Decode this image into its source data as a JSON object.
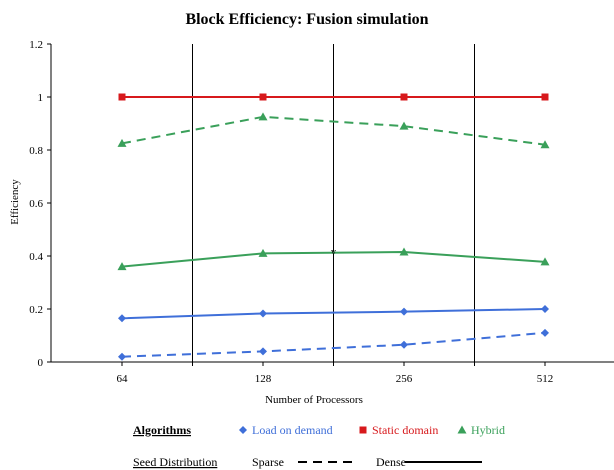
{
  "chart_data": {
    "type": "line",
    "title": "Block Efficiency: Fusion simulation",
    "xlabel": "Number of Processors",
    "ylabel": "Efficiency",
    "categories": [
      "64",
      "128",
      "256",
      "512"
    ],
    "ylim": [
      0,
      1.2
    ],
    "yticks": [
      "0",
      "0.2",
      "0.4",
      "0.6",
      "0.8",
      "1",
      "1.2"
    ],
    "grid": "vertical",
    "series": [
      {
        "algorithm": "Load on demand",
        "distribution": "Sparse",
        "color": "#3f6fd9",
        "marker": "diamond",
        "dash": true,
        "values": [
          0.02,
          0.04,
          0.065,
          0.11
        ]
      },
      {
        "algorithm": "Load on demand",
        "distribution": "Dense",
        "color": "#3f6fd9",
        "marker": "diamond",
        "dash": false,
        "values": [
          0.165,
          0.183,
          0.19,
          0.2
        ]
      },
      {
        "algorithm": "Static domain",
        "distribution": "Sparse",
        "color": "#d7191c",
        "marker": "square",
        "dash": true,
        "values": [
          1.0,
          1.0,
          1.0,
          1.0
        ]
      },
      {
        "algorithm": "Static domain",
        "distribution": "Dense",
        "color": "#d7191c",
        "marker": "square",
        "dash": false,
        "values": [
          1.0,
          1.0,
          1.0,
          1.0
        ]
      },
      {
        "algorithm": "Hybrid",
        "distribution": "Sparse",
        "color": "#3aa05a",
        "marker": "triangle",
        "dash": true,
        "values": [
          0.825,
          0.925,
          0.89,
          0.82
        ]
      },
      {
        "algorithm": "Hybrid",
        "distribution": "Dense",
        "color": "#3aa05a",
        "marker": "triangle",
        "dash": false,
        "values": [
          0.36,
          0.41,
          0.415,
          0.378
        ]
      }
    ],
    "annotation": {
      "text": "v",
      "x_between": [
        "128",
        "256"
      ],
      "y": 0.415
    }
  },
  "legend": {
    "algorithms_heading": "Algorithms",
    "algorithms": [
      {
        "label": "Load on demand",
        "color": "#3f6fd9",
        "marker": "diamond"
      },
      {
        "label": "Static domain",
        "color": "#d7191c",
        "marker": "square"
      },
      {
        "label": "Hybrid",
        "color": "#3aa05a",
        "marker": "triangle"
      }
    ],
    "seed_heading": "Seed Distribution",
    "seed": [
      {
        "label": "Sparse",
        "style": "dashed"
      },
      {
        "label": "Dense",
        "style": "solid"
      }
    ]
  }
}
